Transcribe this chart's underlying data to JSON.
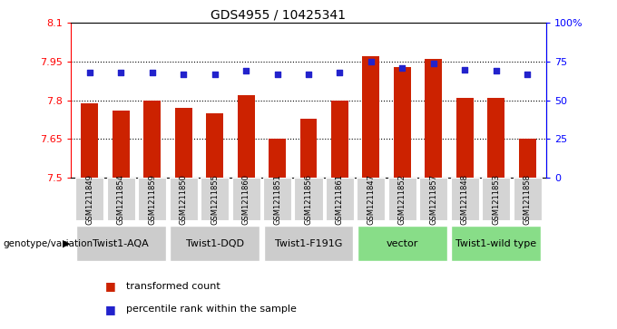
{
  "title": "GDS4955 / 10425341",
  "samples": [
    "GSM1211849",
    "GSM1211854",
    "GSM1211859",
    "GSM1211850",
    "GSM1211855",
    "GSM1211860",
    "GSM1211851",
    "GSM1211856",
    "GSM1211861",
    "GSM1211847",
    "GSM1211852",
    "GSM1211857",
    "GSM1211848",
    "GSM1211853",
    "GSM1211858"
  ],
  "transformed_counts": [
    7.79,
    7.76,
    7.8,
    7.77,
    7.75,
    7.82,
    7.65,
    7.73,
    7.8,
    7.97,
    7.93,
    7.96,
    7.81,
    7.81,
    7.65
  ],
  "percentile_ranks": [
    68,
    68,
    68,
    67,
    67,
    69,
    67,
    67,
    68,
    75,
    71,
    74,
    70,
    69,
    67
  ],
  "groups": [
    {
      "name": "Twist1-AQA",
      "indices": [
        0,
        1,
        2
      ],
      "color": "#cccccc"
    },
    {
      "name": "Twist1-DQD",
      "indices": [
        3,
        4,
        5
      ],
      "color": "#cccccc"
    },
    {
      "name": "Twist1-F191G",
      "indices": [
        6,
        7,
        8
      ],
      "color": "#cccccc"
    },
    {
      "name": "vector",
      "indices": [
        9,
        10,
        11
      ],
      "color": "#88dd88"
    },
    {
      "name": "Twist1-wild type",
      "indices": [
        12,
        13,
        14
      ],
      "color": "#88dd88"
    }
  ],
  "ylim_left": [
    7.5,
    8.1
  ],
  "ylim_right": [
    0,
    100
  ],
  "yticks_left": [
    7.5,
    7.65,
    7.8,
    7.95,
    8.1
  ],
  "yticks_right": [
    0,
    25,
    50,
    75,
    100
  ],
  "ytick_labels_left": [
    "7.5",
    "7.65",
    "7.8",
    "7.95",
    "8.1"
  ],
  "ytick_labels_right": [
    "0",
    "25",
    "50",
    "75",
    "100%"
  ],
  "hlines": [
    7.65,
    7.8,
    7.95
  ],
  "bar_color": "#cc2200",
  "dot_color": "#2222cc",
  "bg_color": "#ffffff",
  "legend_bar_label": "transformed count",
  "legend_dot_label": "percentile rank within the sample",
  "group_label": "genotype/variation"
}
